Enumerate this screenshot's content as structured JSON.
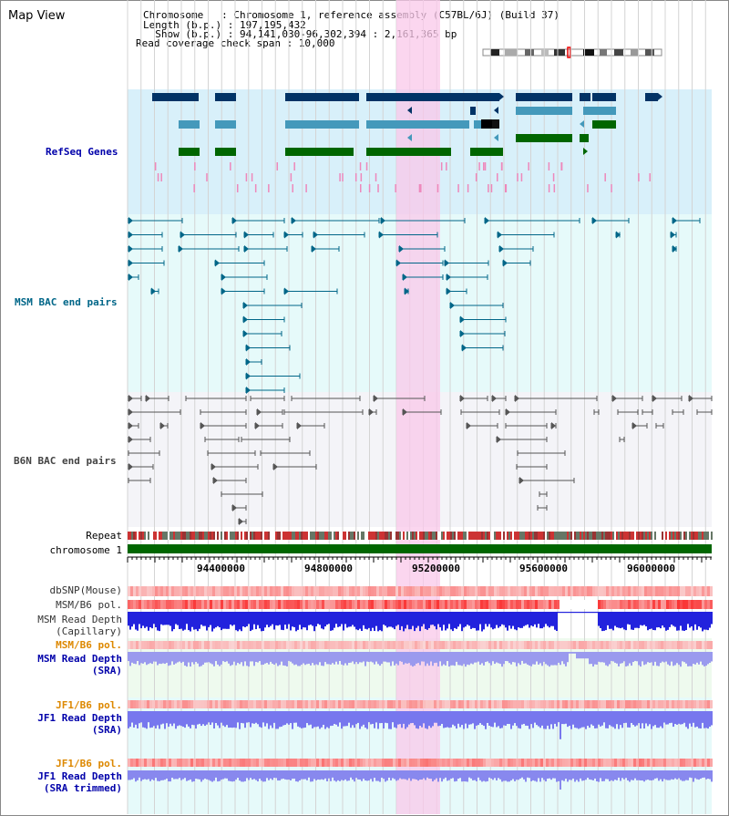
{
  "header": {
    "title": "Map View",
    "info_lines": [
      "Chromosome   : Chromosome 1, reference assembly (C57BL/6J) (Build 37)",
      "Length (b.p.) : 197,195,432",
      "  Show (b.p.) : 94,141,030-96,302,394 : 2,161,365 bp",
      "Read coverage check span : 10,000"
    ]
  },
  "tracks": {
    "refseq": {
      "label": "RefSeq Genes",
      "color": "#0000aa"
    },
    "msm_bac": {
      "label": "MSM BAC end pairs",
      "color": "#006688"
    },
    "b6n_bac": {
      "label": "B6N BAC end pairs",
      "color": "#444444"
    },
    "repeat": {
      "label": "Repeat"
    },
    "chromosome": {
      "label": "chromosome 1"
    }
  },
  "axis": {
    "ticks": [
      "94400000",
      "94800000",
      "95200000",
      "95600000",
      "96000000"
    ]
  },
  "lower_tracks": {
    "dbsnp": {
      "label": "dbSNP(Mouse)"
    },
    "msm_b6_pol": {
      "label": "MSM/B6 pol."
    },
    "msm_depth_cap": {
      "label": "MSM Read Depth\n(Capillary)"
    },
    "msm_b6_pol2": {
      "label": "MSM/B6 pol."
    },
    "msm_depth_sra": {
      "label": "MSM Read Depth\n(SRA)"
    },
    "jf1_b6_pol": {
      "label": "JF1/B6 pol."
    },
    "jf1_depth_sra": {
      "label": "JF1 Read Depth\n(SRA)"
    },
    "jf1_b6_pol2": {
      "label": "JF1/B6 pol."
    },
    "jf1_depth_trim": {
      "label": "JF1 Read Depth\n(SRA trimmed)"
    }
  },
  "colors": {
    "refseq_dark": "#003366",
    "refseq_mid": "#4499bb",
    "refseq_green": "#006600",
    "highlight": "#f9d4ee",
    "msm_label": "#006688",
    "orange_label": "#dd8800",
    "blue_label": "#0000aa"
  }
}
